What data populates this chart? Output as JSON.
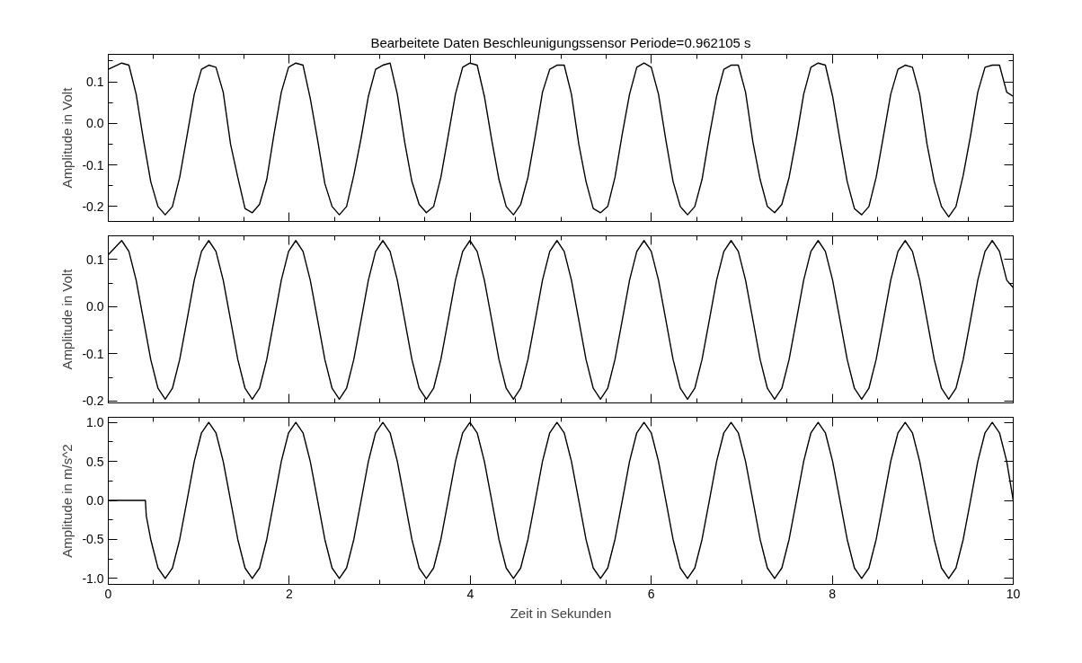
{
  "chart_data": [
    {
      "type": "line",
      "title": "Bearbeitete Daten Beschleunigungssensor Periode=0.962105 s",
      "ylabel": "Amplitude in Volt",
      "tick_labels": "y",
      "grid": false,
      "xlim": [
        0,
        10
      ],
      "xticks": [
        0,
        2,
        4,
        6,
        8,
        10
      ],
      "ylim": [
        -0.236,
        0.166
      ],
      "yticks": [
        0.1,
        {
          "value": 0,
          "label": "0.0"
        },
        -0.1,
        -0.2
      ],
      "x": [
        0,
        0.148,
        0.228,
        0.308,
        0.389,
        0.469,
        0.549,
        0.629,
        0.709,
        0.789,
        0.87,
        0.95,
        1.03,
        1.11,
        1.19,
        1.27,
        1.351,
        1.431,
        1.511,
        1.591,
        1.671,
        1.751,
        1.832,
        1.912,
        1.992,
        2.072,
        2.152,
        2.232,
        2.313,
        2.393,
        2.473,
        2.553,
        2.633,
        2.713,
        2.794,
        2.874,
        2.954,
        3.034,
        3.114,
        3.194,
        3.275,
        3.355,
        3.435,
        3.515,
        3.595,
        3.675,
        3.756,
        3.836,
        3.916,
        3.996,
        4.076,
        4.156,
        4.237,
        4.317,
        4.397,
        4.477,
        4.557,
        4.637,
        4.718,
        4.798,
        4.878,
        4.958,
        5.038,
        5.118,
        5.199,
        5.279,
        5.359,
        5.439,
        5.519,
        5.599,
        5.68,
        5.76,
        5.84,
        5.92,
        6.0,
        6.08,
        6.161,
        6.241,
        6.321,
        6.401,
        6.481,
        6.561,
        6.642,
        6.722,
        6.802,
        6.882,
        6.962,
        7.042,
        7.123,
        7.203,
        7.283,
        7.363,
        7.443,
        7.523,
        7.604,
        7.684,
        7.764,
        7.844,
        7.924,
        8.004,
        8.085,
        8.165,
        8.245,
        8.325,
        8.405,
        8.485,
        8.566,
        8.646,
        8.726,
        8.806,
        8.886,
        8.966,
        9.047,
        9.127,
        9.207,
        9.287,
        9.367,
        9.447,
        9.528,
        9.608,
        9.688,
        9.768,
        9.848,
        9.928,
        10
      ],
      "series": [
        {
          "color": "#000000",
          "values": [
            0.13,
            0.145,
            0.14,
            0.07,
            -0.04,
            -0.14,
            -0.2,
            -0.22,
            -0.2,
            -0.13,
            -0.03,
            0.07,
            0.13,
            0.14,
            0.135,
            0.075,
            -0.05,
            -0.13,
            -0.205,
            -0.215,
            -0.195,
            -0.135,
            -0.025,
            0.075,
            0.135,
            0.145,
            0.14,
            0.06,
            -0.04,
            -0.145,
            -0.2,
            -0.22,
            -0.2,
            -0.125,
            -0.035,
            0.065,
            0.13,
            0.14,
            0.145,
            0.07,
            -0.045,
            -0.14,
            -0.195,
            -0.215,
            -0.2,
            -0.13,
            -0.03,
            0.07,
            0.135,
            0.145,
            0.14,
            0.065,
            -0.04,
            -0.135,
            -0.2,
            -0.22,
            -0.195,
            -0.13,
            -0.03,
            0.075,
            0.13,
            0.14,
            0.14,
            0.07,
            -0.05,
            -0.14,
            -0.205,
            -0.215,
            -0.2,
            -0.13,
            -0.025,
            0.07,
            0.135,
            0.145,
            0.135,
            0.07,
            -0.04,
            -0.14,
            -0.2,
            -0.22,
            -0.2,
            -0.135,
            -0.03,
            0.065,
            0.13,
            0.14,
            0.14,
            0.075,
            -0.045,
            -0.135,
            -0.2,
            -0.215,
            -0.195,
            -0.13,
            -0.035,
            0.07,
            0.135,
            0.145,
            0.14,
            0.065,
            -0.04,
            -0.14,
            -0.205,
            -0.22,
            -0.2,
            -0.13,
            -0.03,
            0.07,
            0.13,
            0.14,
            0.135,
            0.07,
            -0.05,
            -0.14,
            -0.2,
            -0.225,
            -0.2,
            -0.125,
            -0.03,
            0.075,
            0.135,
            0.14,
            0.14,
            0.075,
            0.065
          ]
        }
      ]
    },
    {
      "type": "line",
      "ylabel": "Amplitude in Volt",
      "tick_labels": "y",
      "grid": false,
      "xlim": [
        0,
        10
      ],
      "xticks": [
        0,
        2,
        4,
        6,
        8,
        10
      ],
      "ylim": [
        -0.204,
        0.15
      ],
      "yticks": [
        0.1,
        {
          "value": 0,
          "label": "0.0"
        },
        -0.1,
        -0.2
      ],
      "x": [
        0,
        0.148,
        0.228,
        0.308,
        0.389,
        0.469,
        0.549,
        0.629,
        0.709,
        0.789,
        0.87,
        0.95,
        1.03,
        1.11,
        1.19,
        1.27,
        1.351,
        1.431,
        1.511,
        1.591,
        1.671,
        1.751,
        1.832,
        1.912,
        1.992,
        2.072,
        2.152,
        2.232,
        2.313,
        2.393,
        2.473,
        2.553,
        2.633,
        2.713,
        2.794,
        2.874,
        2.954,
        3.034,
        3.114,
        3.194,
        3.275,
        3.355,
        3.435,
        3.515,
        3.595,
        3.675,
        3.756,
        3.836,
        3.916,
        3.996,
        4.076,
        4.156,
        4.237,
        4.317,
        4.397,
        4.477,
        4.557,
        4.637,
        4.718,
        4.798,
        4.878,
        4.958,
        5.038,
        5.118,
        5.199,
        5.279,
        5.359,
        5.439,
        5.519,
        5.599,
        5.68,
        5.76,
        5.84,
        5.92,
        6.0,
        6.08,
        6.161,
        6.241,
        6.321,
        6.401,
        6.481,
        6.561,
        6.642,
        6.722,
        6.802,
        6.882,
        6.962,
        7.042,
        7.123,
        7.203,
        7.283,
        7.363,
        7.443,
        7.523,
        7.604,
        7.684,
        7.764,
        7.844,
        7.924,
        8.004,
        8.085,
        8.165,
        8.245,
        8.325,
        8.405,
        8.485,
        8.566,
        8.646,
        8.726,
        8.806,
        8.886,
        8.966,
        9.047,
        9.127,
        9.207,
        9.287,
        9.367,
        9.447,
        9.528,
        9.608,
        9.688,
        9.768,
        9.848,
        9.928,
        10
      ],
      "series": [
        {
          "color": "#000000",
          "values": [
            0.11,
            0.14,
            0.117,
            0.056,
            -0.028,
            -0.112,
            -0.173,
            -0.196,
            -0.173,
            -0.112,
            -0.028,
            0.056,
            0.117,
            0.14,
            0.117,
            0.056,
            -0.028,
            -0.112,
            -0.173,
            -0.196,
            -0.173,
            -0.112,
            -0.028,
            0.056,
            0.117,
            0.14,
            0.117,
            0.056,
            -0.028,
            -0.112,
            -0.173,
            -0.196,
            -0.173,
            -0.112,
            -0.028,
            0.056,
            0.117,
            0.14,
            0.117,
            0.056,
            -0.028,
            -0.112,
            -0.173,
            -0.196,
            -0.173,
            -0.112,
            -0.028,
            0.056,
            0.117,
            0.14,
            0.117,
            0.056,
            -0.028,
            -0.112,
            -0.173,
            -0.196,
            -0.173,
            -0.112,
            -0.028,
            0.056,
            0.117,
            0.14,
            0.117,
            0.056,
            -0.028,
            -0.112,
            -0.173,
            -0.196,
            -0.173,
            -0.112,
            -0.028,
            0.056,
            0.117,
            0.14,
            0.117,
            0.056,
            -0.028,
            -0.112,
            -0.173,
            -0.196,
            -0.173,
            -0.112,
            -0.028,
            0.056,
            0.117,
            0.14,
            0.117,
            0.056,
            -0.028,
            -0.112,
            -0.173,
            -0.196,
            -0.173,
            -0.112,
            -0.028,
            0.056,
            0.117,
            0.14,
            0.117,
            0.056,
            -0.028,
            -0.112,
            -0.173,
            -0.196,
            -0.173,
            -0.112,
            -0.028,
            0.056,
            0.117,
            0.14,
            0.117,
            0.056,
            -0.028,
            -0.112,
            -0.173,
            -0.196,
            -0.173,
            -0.112,
            -0.028,
            0.056,
            0.117,
            0.14,
            0.117,
            0.056,
            0.04
          ]
        }
      ]
    },
    {
      "type": "line",
      "ylabel": "Amplitude in m/s^2",
      "xlabel": "Zeit in Sekunden",
      "grid": false,
      "xlim": [
        0,
        10
      ],
      "xticks": [
        0,
        2,
        4,
        6,
        8,
        10
      ],
      "ylim": [
        -1.076,
        1.065
      ],
      "yticks": [
        {
          "value": 1,
          "label": "1.0"
        },
        0.5,
        {
          "value": 0,
          "label": "0.0"
        },
        -0.5,
        {
          "value": -1,
          "label": "-1.0"
        }
      ],
      "x": [
        0,
        0.41,
        0.42,
        0.469,
        0.549,
        0.629,
        0.709,
        0.789,
        0.87,
        0.95,
        1.03,
        1.11,
        1.19,
        1.27,
        1.351,
        1.431,
        1.511,
        1.591,
        1.671,
        1.751,
        1.832,
        1.912,
        1.992,
        2.072,
        2.152,
        2.232,
        2.313,
        2.393,
        2.473,
        2.553,
        2.633,
        2.713,
        2.794,
        2.874,
        2.954,
        3.034,
        3.114,
        3.194,
        3.275,
        3.355,
        3.435,
        3.515,
        3.595,
        3.675,
        3.756,
        3.836,
        3.916,
        3.996,
        4.076,
        4.156,
        4.237,
        4.317,
        4.397,
        4.477,
        4.557,
        4.637,
        4.718,
        4.798,
        4.878,
        4.958,
        5.038,
        5.118,
        5.199,
        5.279,
        5.359,
        5.439,
        5.519,
        5.599,
        5.68,
        5.76,
        5.84,
        5.92,
        6.0,
        6.08,
        6.161,
        6.241,
        6.321,
        6.401,
        6.481,
        6.561,
        6.642,
        6.722,
        6.802,
        6.882,
        6.962,
        7.042,
        7.123,
        7.203,
        7.283,
        7.363,
        7.443,
        7.523,
        7.604,
        7.684,
        7.764,
        7.844,
        7.924,
        8.004,
        8.085,
        8.165,
        8.245,
        8.325,
        8.405,
        8.485,
        8.566,
        8.646,
        8.726,
        8.806,
        8.886,
        8.966,
        9.047,
        9.127,
        9.207,
        9.287,
        9.367,
        9.447,
        9.528,
        9.608,
        9.688,
        9.768,
        9.848,
        9.928,
        10
      ],
      "series": [
        {
          "color": "#000000",
          "values": [
            0,
            0,
            -0.2,
            -0.5,
            -0.866,
            -1,
            -0.866,
            -0.5,
            0,
            0.5,
            0.866,
            1,
            0.866,
            0.5,
            0,
            -0.5,
            -0.866,
            -1,
            -0.866,
            -0.5,
            0,
            0.5,
            0.866,
            1,
            0.866,
            0.5,
            0,
            -0.5,
            -0.866,
            -1,
            -0.866,
            -0.5,
            0,
            0.5,
            0.866,
            1,
            0.866,
            0.5,
            0,
            -0.5,
            -0.866,
            -1,
            -0.866,
            -0.5,
            0,
            0.5,
            0.866,
            1,
            0.866,
            0.5,
            0,
            -0.5,
            -0.866,
            -1,
            -0.866,
            -0.5,
            0,
            0.5,
            0.866,
            1,
            0.866,
            0.5,
            0,
            -0.5,
            -0.866,
            -1,
            -0.866,
            -0.5,
            0,
            0.5,
            0.866,
            1,
            0.866,
            0.5,
            0,
            -0.5,
            -0.866,
            -1,
            -0.866,
            -0.5,
            0,
            0.5,
            0.866,
            1,
            0.866,
            0.5,
            0,
            -0.5,
            -0.866,
            -1,
            -0.866,
            -0.5,
            0,
            0.5,
            0.866,
            1,
            0.866,
            0.5,
            0,
            -0.5,
            -0.866,
            -1,
            -0.866,
            -0.5,
            0,
            0.5,
            0.866,
            1,
            0.866,
            0.5,
            0,
            -0.5,
            -0.866,
            -1,
            -0.866,
            -0.5,
            0,
            0.5,
            0.866,
            1,
            0.866,
            0.5,
            0.0
          ]
        }
      ]
    }
  ]
}
